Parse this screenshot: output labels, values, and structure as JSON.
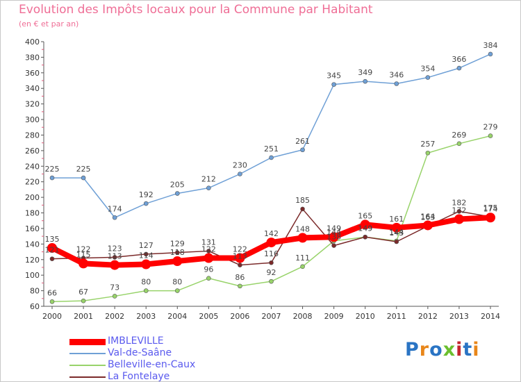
{
  "chart_data": {
    "type": "line",
    "title": "Evolution des Impôts locaux pour la Commune par Habitant",
    "subtitle": "(en € et par an)",
    "x": [
      2000,
      2001,
      2002,
      2003,
      2004,
      2005,
      2006,
      2007,
      2008,
      2009,
      2010,
      2011,
      2012,
      2013,
      2014
    ],
    "ylim": [
      60,
      400
    ],
    "ytick_step": 20,
    "grid": false,
    "legend_position": "bottom-left",
    "series": [
      {
        "name": "IMBLEVILLE",
        "color": "#ff0000",
        "values": [
          135,
          115,
          113,
          114,
          118,
          122,
          122,
          142,
          148,
          149,
          165,
          161,
          164,
          172,
          174
        ],
        "labels": [
          "135",
          "115",
          "113",
          "114",
          "118",
          "122",
          "122",
          "142",
          "148",
          "149",
          "165",
          "161",
          "164",
          "172",
          "174"
        ]
      },
      {
        "name": "Val-de-Saâne",
        "color": "#6fa0d6",
        "values": [
          225,
          225,
          174,
          192,
          205,
          212,
          230,
          251,
          261,
          345,
          349,
          346,
          354,
          366,
          384
        ],
        "labels": [
          "225",
          "225",
          "174",
          "192",
          "205",
          "212",
          "230",
          "251",
          "261",
          "345",
          "349",
          "346",
          "354",
          "366",
          "384"
        ]
      },
      {
        "name": "Belleville-en-Caux",
        "color": "#98d36a",
        "values": [
          66,
          67,
          73,
          80,
          80,
          96,
          86,
          92,
          111,
          144,
          149,
          144,
          257,
          269,
          279
        ],
        "labels": [
          "66",
          "67",
          "73",
          "80",
          "80",
          "96",
          "86",
          "92",
          "111",
          "144",
          "149",
          "144",
          "257",
          "269",
          "279"
        ]
      },
      {
        "name": "La Fontelaye",
        "color": "#7b2a2a",
        "values": [
          121,
          122,
          123,
          127,
          129,
          131,
          113,
          116,
          185,
          138,
          149,
          143,
          163,
          182,
          175
        ],
        "labels": [
          "121",
          "122",
          "123",
          "127",
          "129",
          "131",
          "113",
          "116",
          "185",
          "138",
          "149",
          "143",
          "163",
          "182",
          "175"
        ]
      }
    ]
  },
  "logo": {
    "text": "Proxiti",
    "letter_colors": [
      "#2a74c4",
      "#e8861a",
      "#2a74c4",
      "#6bbf2e",
      "#c4262e",
      "#2a74c4",
      "#e8861a"
    ]
  }
}
